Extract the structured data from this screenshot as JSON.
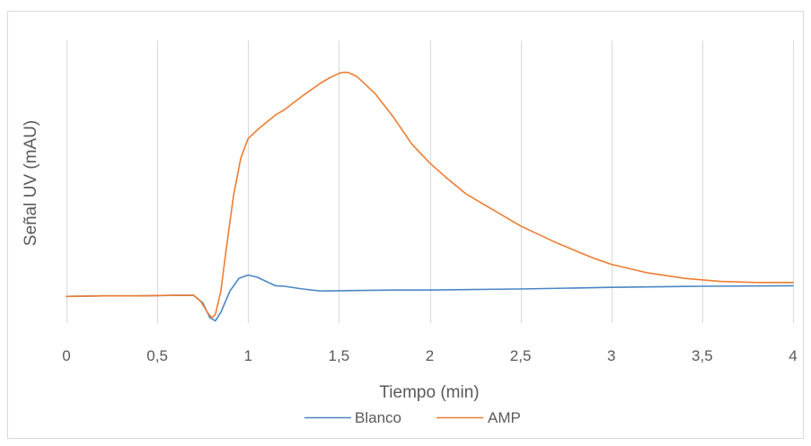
{
  "chart_data": {
    "type": "line",
    "title": "",
    "xlabel": "Tiempo (min)",
    "ylabel": "Señal UV (mAU)",
    "xlim": [
      0,
      4
    ],
    "ylim": [
      -2.5,
      24
    ],
    "x_ticks": [
      "0",
      "0,5",
      "1",
      "1,5",
      "2",
      "2,5",
      "3",
      "3,5",
      "4"
    ],
    "x_tick_values": [
      0,
      0.5,
      1,
      1.5,
      2,
      2.5,
      3,
      3.5,
      4
    ],
    "y_tick_labels_shown": false,
    "grid": {
      "vertical": true,
      "horizontal": false
    },
    "legend_position": "bottom",
    "series": [
      {
        "name": "Blanco",
        "color": "#4a86c5",
        "x": [
          0,
          0.2,
          0.4,
          0.6,
          0.7,
          0.75,
          0.79,
          0.82,
          0.85,
          0.9,
          0.95,
          1.0,
          1.05,
          1.1,
          1.15,
          1.2,
          1.3,
          1.4,
          1.6,
          1.8,
          2.0,
          2.5,
          3.0,
          3.5,
          4.0
        ],
        "y": [
          0,
          0.05,
          0.05,
          0.1,
          0.1,
          -0.6,
          -2.0,
          -2.3,
          -1.5,
          0.5,
          1.7,
          2.0,
          1.8,
          1.4,
          1.0,
          0.95,
          0.7,
          0.5,
          0.55,
          0.6,
          0.6,
          0.7,
          0.85,
          0.95,
          1.0
        ]
      },
      {
        "name": "AMP",
        "color": "#ed7d31",
        "x": [
          0,
          0.2,
          0.4,
          0.6,
          0.7,
          0.74,
          0.78,
          0.8,
          0.82,
          0.85,
          0.88,
          0.92,
          0.96,
          1.0,
          1.05,
          1.1,
          1.15,
          1.2,
          1.3,
          1.4,
          1.45,
          1.5,
          1.52,
          1.55,
          1.6,
          1.7,
          1.8,
          1.9,
          2.0,
          2.1,
          2.2,
          2.3,
          2.4,
          2.5,
          2.6,
          2.7,
          2.8,
          2.9,
          3.0,
          3.2,
          3.4,
          3.6,
          3.8,
          4.0
        ],
        "y": [
          0,
          0.05,
          0.05,
          0.1,
          0.1,
          -0.5,
          -1.6,
          -2.0,
          -1.7,
          0.5,
          4.5,
          9.5,
          13.0,
          14.8,
          15.6,
          16.3,
          17.0,
          17.5,
          18.8,
          20.0,
          20.5,
          20.9,
          21.0,
          21.0,
          20.6,
          19.0,
          16.8,
          14.3,
          12.5,
          11.0,
          9.6,
          8.6,
          7.6,
          6.6,
          5.8,
          5.0,
          4.3,
          3.6,
          3.0,
          2.2,
          1.7,
          1.4,
          1.3,
          1.3
        ]
      }
    ]
  }
}
